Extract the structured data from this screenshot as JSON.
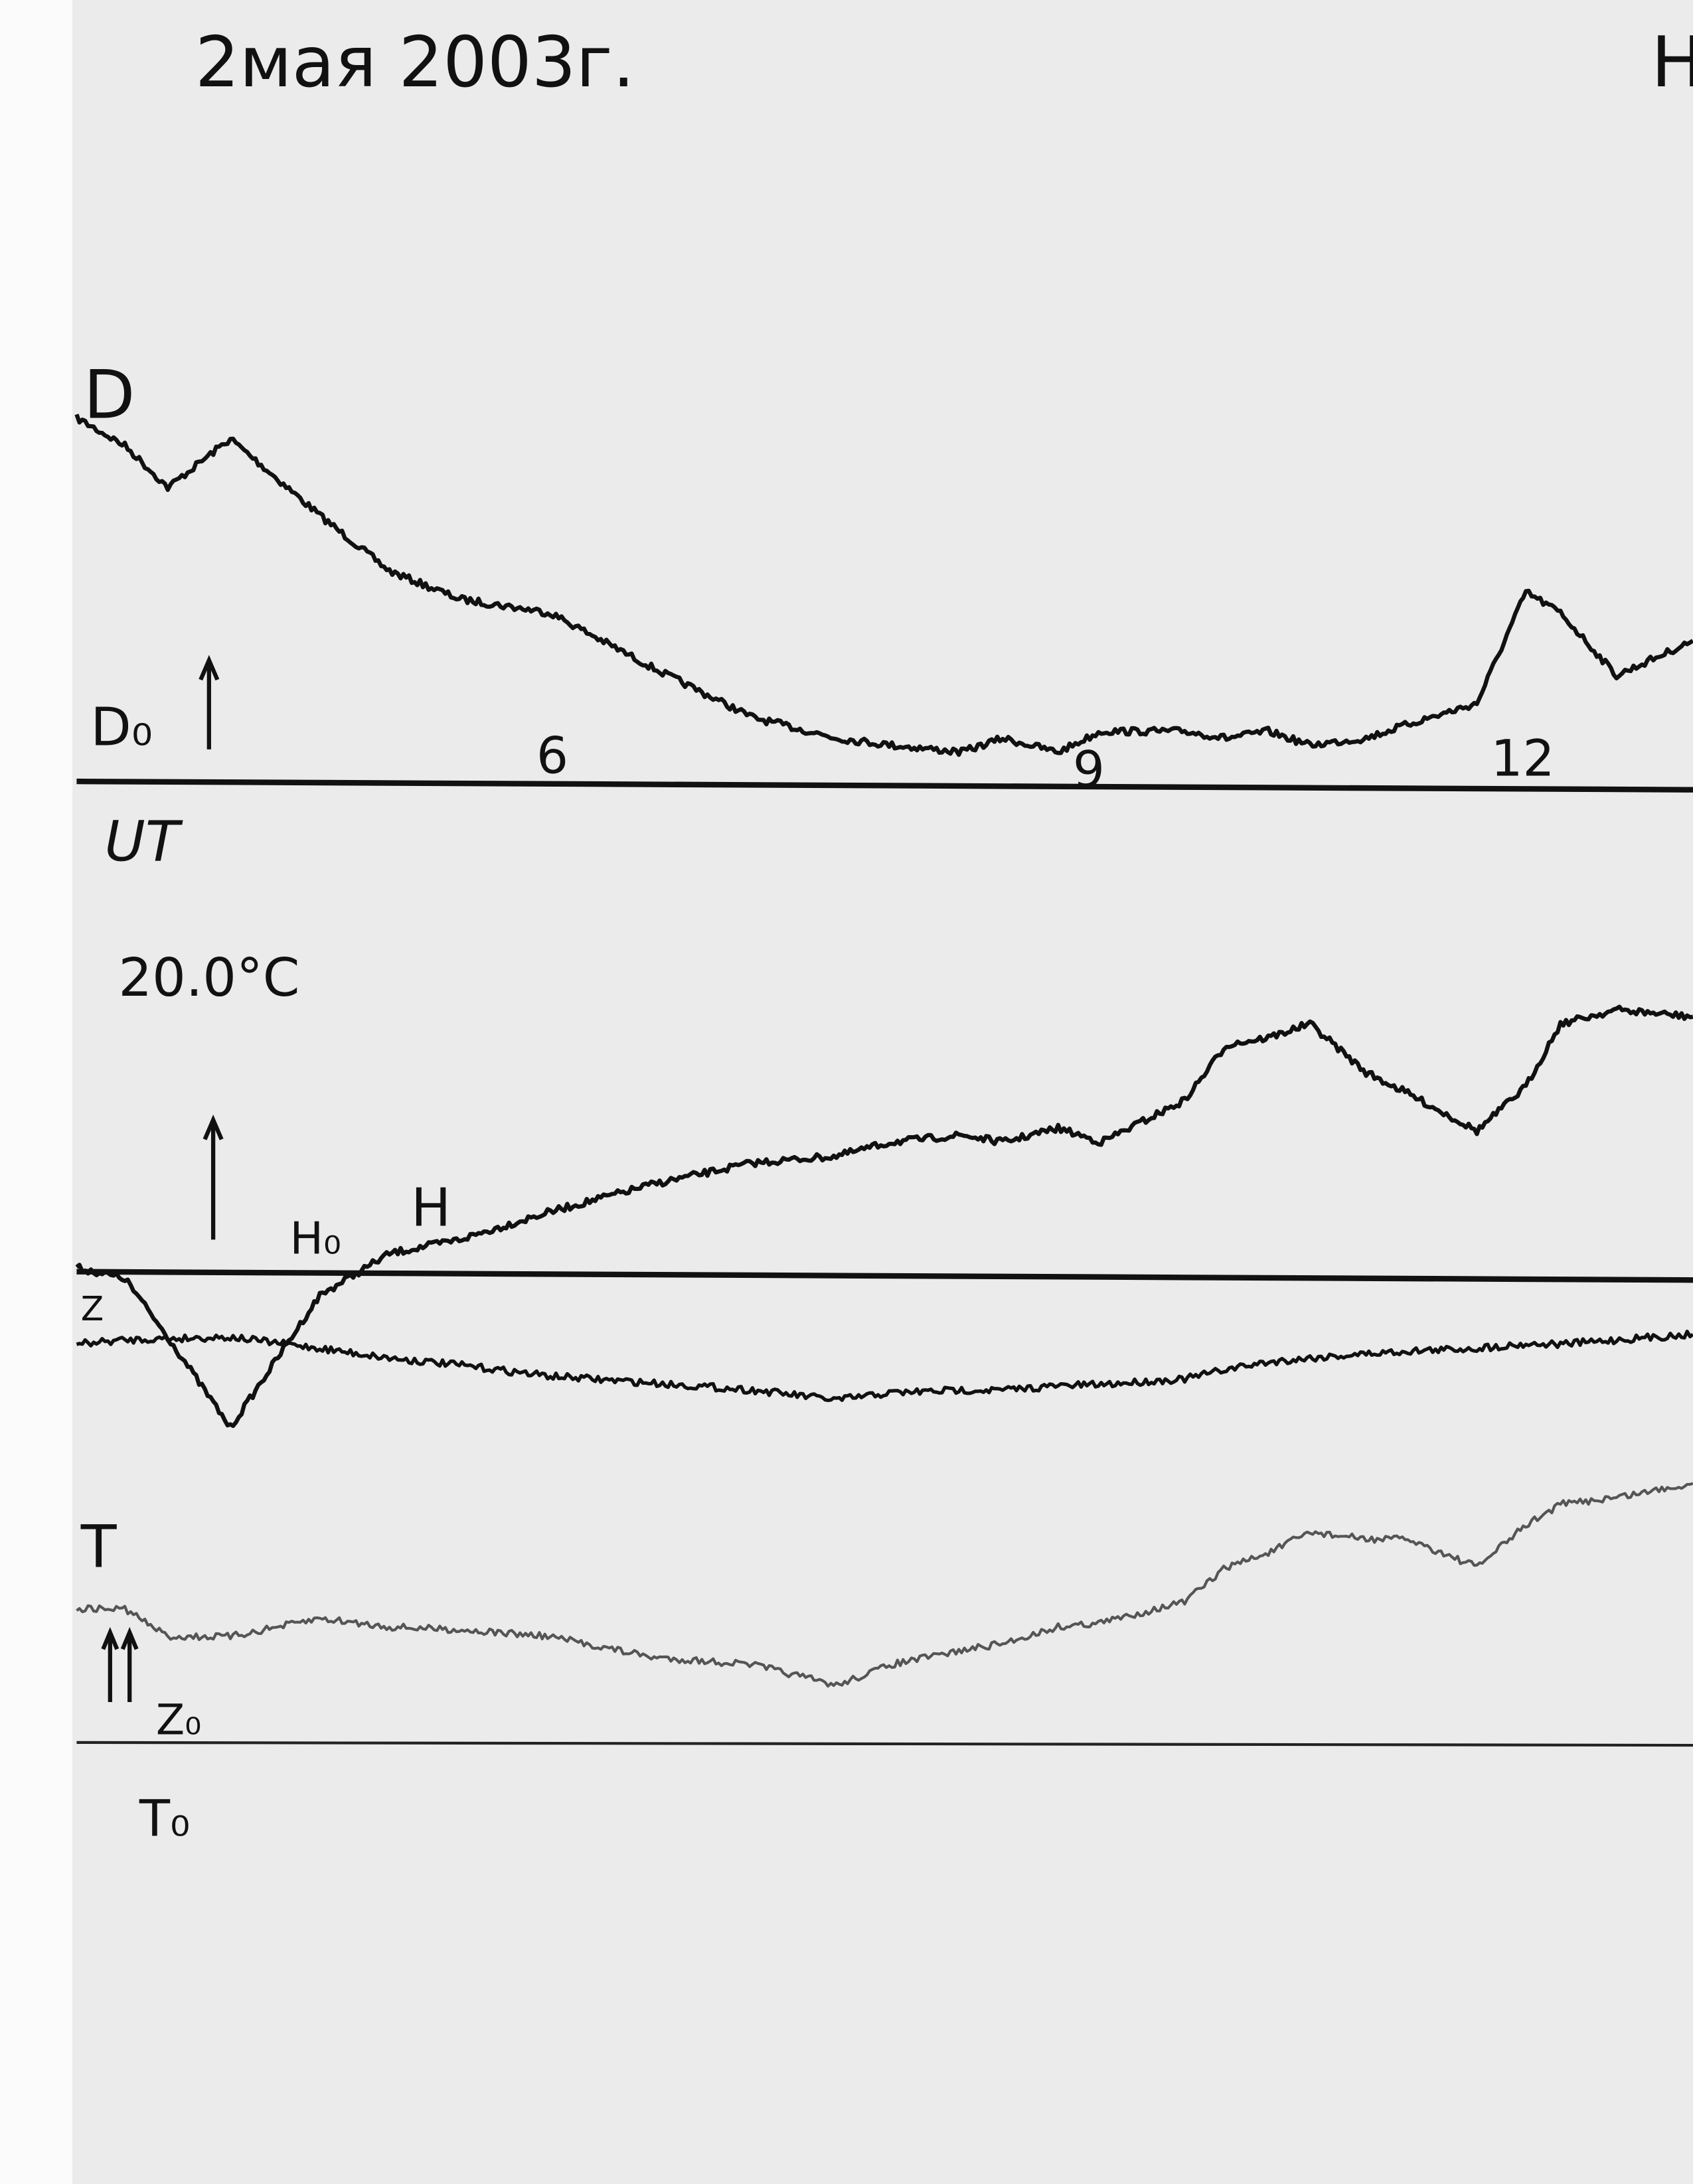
{
  "header": {
    "date_title": "2мая 2003г.",
    "corner_mark": "H"
  },
  "labels": {
    "d_trace": "D",
    "d_baseline": "D₀",
    "time_axis": "UT",
    "temperature": "20.0°C",
    "h_baseline": "H₀",
    "h_trace": "H",
    "z_trace": "Z",
    "t_trace": "T",
    "z_baseline": "Z₀",
    "t_baseline": "T₀"
  },
  "chart_data": {
    "type": "line",
    "title": "2мая 2003г.",
    "xlabel": "UT",
    "ylabel": "",
    "x_ticks": [
      {
        "value": 6,
        "label": "6"
      },
      {
        "value": 9,
        "label": "9"
      },
      {
        "value": 12,
        "label": "12"
      }
    ],
    "xlim": [
      3.35,
      13.21
    ],
    "grid": false,
    "annotation": "20.0°C",
    "x": [
      3.35,
      3.62,
      3.86,
      4.21,
      4.71,
      5.1,
      5.49,
      6.0,
      6.58,
      7.13,
      7.6,
      7.91,
      8.3,
      8.53,
      8.84,
      9.1,
      9.68,
      9.97,
      10.26,
      10.55,
      10.94,
      11.23,
      11.71,
      12.05,
      12.29,
      12.68,
      13.21
    ],
    "series": [
      {
        "name": "D",
        "baseline": "D₀",
        "color": "#111111",
        "values": [
          265,
          245,
          215,
          250,
          195,
          155,
          135,
          125,
          85,
          50,
          35,
          30,
          25,
          35,
          25,
          40,
          40,
          35,
          40,
          30,
          35,
          45,
          60,
          140,
          125,
          80,
          105
        ]
      },
      {
        "name": "H",
        "baseline": "H₀",
        "color": "#111111",
        "values": [
          7,
          -1,
          -43,
          -108,
          -13,
          17,
          27,
          47,
          67,
          82,
          87,
          97,
          102,
          97,
          107,
          97,
          127,
          167,
          172,
          182,
          147,
          132,
          105,
          137,
          182,
          192,
          187
        ]
      },
      {
        "name": "Z",
        "baseline": "Z₀",
        "color": "#111111",
        "values": [
          -48,
          -45,
          -44,
          -43,
          -51,
          -58,
          -63,
          -71,
          -76,
          -81,
          -88,
          -83,
          -81,
          -81,
          -78,
          -77,
          -73,
          -66,
          -61,
          -58,
          -55,
          -53,
          -51,
          -48,
          -48,
          -45,
          -41
        ]
      },
      {
        "name": "T",
        "baseline": "T₀",
        "color": "#555555",
        "values": [
          97,
          97,
          77,
          77,
          90,
          84,
          82,
          77,
          62,
          57,
          42,
          57,
          67,
          72,
          84,
          87,
          102,
          127,
          137,
          152,
          147,
          147,
          127,
          157,
          172,
          177,
          187
        ]
      }
    ]
  }
}
